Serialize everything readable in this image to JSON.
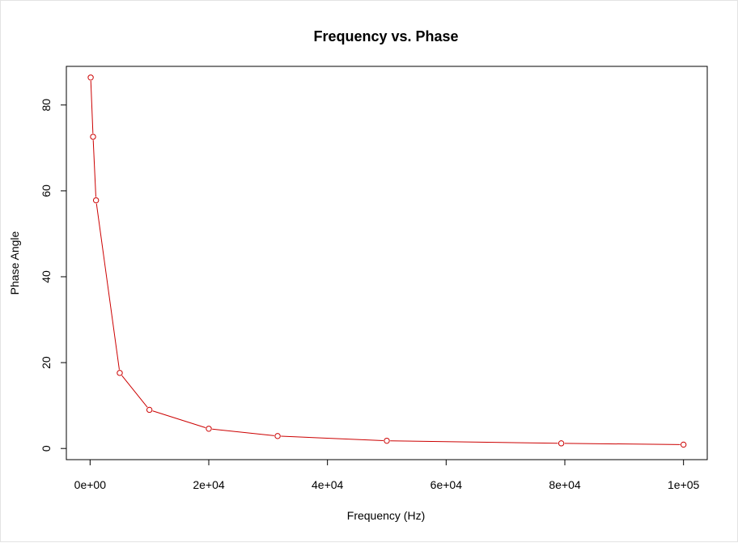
{
  "chart_data": {
    "type": "line",
    "title": "Frequency vs. Phase",
    "xlabel": "Frequency (Hz)",
    "ylabel": "Phase Angle",
    "xlim": [
      -4000,
      104000
    ],
    "ylim": [
      -2.6,
      89.0
    ],
    "x_ticks": [
      0,
      20000,
      40000,
      60000,
      80000,
      100000
    ],
    "x_tick_labels": [
      "0e+00",
      "2e+04",
      "4e+04",
      "6e+04",
      "8e+04",
      "1e+05"
    ],
    "y_ticks": [
      0,
      20,
      40,
      60,
      80
    ],
    "y_tick_labels": [
      "0",
      "20",
      "40",
      "60",
      "80"
    ],
    "grid": false,
    "legend": "none",
    "series": [
      {
        "color": "#cc0000",
        "marker": "open-circle",
        "x": [
          100,
          500,
          1000,
          5000,
          10000,
          20000,
          31600,
          50000,
          79400,
          100000
        ],
        "y": [
          86.4,
          72.6,
          57.8,
          17.6,
          9.0,
          4.6,
          2.9,
          1.8,
          1.2,
          0.9
        ]
      }
    ]
  }
}
